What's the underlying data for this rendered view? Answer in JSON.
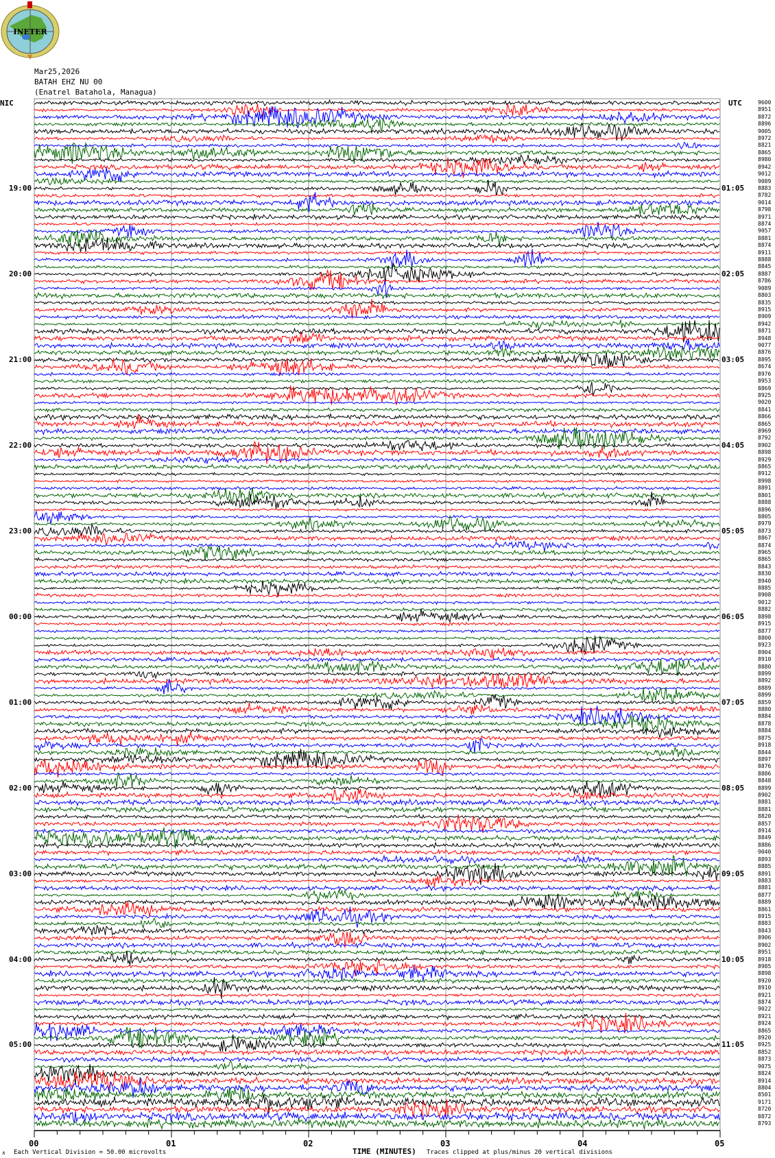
{
  "logo": {
    "text": "INETER"
  },
  "header": {
    "date": "Mar25,2026",
    "station": "BATAH EHZ NU 00",
    "location": "(Enatrel Batahola, Managua)"
  },
  "left_timezone": "NIC",
  "right_timezone": "UTC",
  "footer": {
    "scale": "Each Vertical Division =    50.00 microvolts",
    "xlabel": "TIME (MINUTES)",
    "clip_note": "Traces clipped at plus/minus 20 vertical divisions",
    "corner_mark": "∧"
  },
  "chart_data": {
    "type": "line",
    "subtype": "helicorder",
    "xlabel": "TIME (MINUTES)",
    "xlim": [
      0,
      5
    ],
    "x_ticks": [
      "00",
      "01",
      "02",
      "03",
      "04",
      "05"
    ],
    "minor_ticks_per_minute": 6,
    "grid": "vertical lines each minute",
    "trace_colors": [
      "#000000",
      "#ff0000",
      "#0000ff",
      "#006400"
    ],
    "rows_per_hour": 12,
    "left_hour_labels": [
      "19:00",
      "20:00",
      "21:00",
      "22:00",
      "23:00",
      "00:00",
      "01:00",
      "02:00",
      "03:00",
      "04:00",
      "05:00"
    ],
    "right_hour_labels": [
      "01:05",
      "02:05",
      "03:05",
      "04:05",
      "05:05",
      "06:05",
      "07:05",
      "08:05",
      "09:05",
      "10:05",
      "11:05"
    ],
    "row_values": [
      "9600",
      "8951",
      "8872",
      "8896",
      "9005",
      "8972",
      "8821",
      "8865",
      "8980",
      "8942",
      "9012",
      "9089",
      "8883",
      "8782",
      "9014",
      "8798",
      "8971",
      "8874",
      "9057",
      "8881",
      "8874",
      "8911",
      "8888",
      "8845",
      "8887",
      "8786",
      "9089",
      "8803",
      "8835",
      "8915",
      "8909",
      "8942",
      "8871",
      "8948",
      "9077",
      "8876",
      "8895",
      "8674",
      "8976",
      "8953",
      "8869",
      "8925",
      "9020",
      "8841",
      "8866",
      "8865",
      "8969",
      "8792",
      "8902",
      "8898",
      "8929",
      "8865",
      "8912",
      "8998",
      "8891",
      "8801",
      "8888",
      "8896",
      "8805",
      "8979",
      "8873",
      "8867",
      "8874",
      "8965",
      "8865",
      "8843",
      "8830",
      "8940",
      "8885",
      "8908",
      "9012",
      "8882",
      "8898",
      "8915",
      "8877",
      "8800",
      "8923",
      "8904",
      "8910",
      "8880",
      "8899",
      "8892",
      "8889",
      "8899",
      "8859",
      "8880",
      "8884",
      "8878",
      "8884",
      "8875",
      "8918",
      "8844",
      "8897",
      "8876",
      "8886",
      "8848",
      "8899",
      "8902",
      "8881",
      "8881",
      "8820",
      "8857",
      "8914",
      "8849",
      "8886",
      "9040",
      "8893",
      "8885",
      "8891",
      "8883",
      "8881",
      "8877",
      "8889",
      "8861",
      "8915",
      "8883",
      "8843",
      "8906",
      "8902",
      "8951",
      "8918",
      "8985",
      "8898",
      "8920",
      "8910",
      "8921",
      "8874",
      "9022",
      "8921",
      "8924",
      "8865",
      "8920",
      "8925",
      "8852",
      "8873",
      "9075",
      "8824",
      "8914",
      "8804",
      "8501",
      "9171",
      "8720",
      "8872",
      "8793"
    ]
  }
}
